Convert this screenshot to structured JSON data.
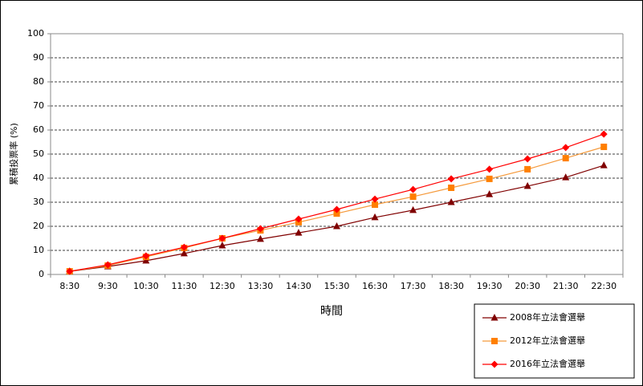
{
  "chart_data": {
    "type": "line",
    "x_label": "時間",
    "y_label": "累積投票率 (%)",
    "categories": [
      "8:30",
      "9:30",
      "10:30",
      "11:30",
      "12:30",
      "13:30",
      "14:30",
      "15:30",
      "16:30",
      "17:30",
      "18:30",
      "19:30",
      "20:30",
      "21:30",
      "22:30"
    ],
    "series": [
      {
        "name": "2008年立法會選舉",
        "color": "#800000",
        "marker": "triangle",
        "values": [
          1.3,
          3.3,
          5.7,
          8.7,
          12,
          14.7,
          17.3,
          20,
          23.7,
          26.7,
          30,
          33.3,
          36.7,
          40.3,
          45.3
        ]
      },
      {
        "name": "2012年立法會選舉",
        "color": "#f59a3c",
        "marker_color": "#ff7f00",
        "marker": "square",
        "values": [
          1.3,
          3.7,
          7.3,
          11,
          15,
          18.3,
          21.7,
          25.3,
          29,
          32.3,
          36,
          39.7,
          43.7,
          48.3,
          53
        ]
      },
      {
        "name": "2016年立法會選舉",
        "color": "#ff0000",
        "marker": "diamond",
        "values": [
          1.3,
          4,
          7.7,
          11.3,
          15,
          19,
          23,
          27,
          31.3,
          35.3,
          39.7,
          43.7,
          48,
          52.7,
          58.3
        ]
      }
    ],
    "ylim": [
      0,
      100
    ],
    "yticks": [
      0,
      10,
      20,
      30,
      40,
      50,
      60,
      70,
      80,
      90,
      100
    ],
    "grid": true,
    "legend": "bottom-right"
  }
}
